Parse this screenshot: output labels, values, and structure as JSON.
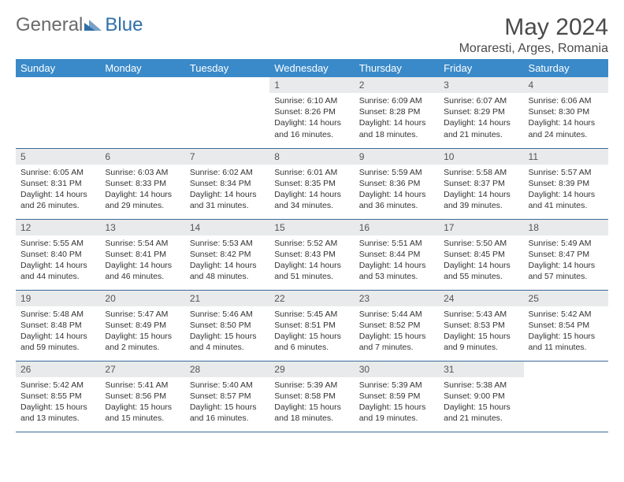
{
  "brand": {
    "part1": "General",
    "part2": "Blue"
  },
  "title": "May 2024",
  "location": "Moraresti, Arges, Romania",
  "day_headers": [
    "Sunday",
    "Monday",
    "Tuesday",
    "Wednesday",
    "Thursday",
    "Friday",
    "Saturday"
  ],
  "colors": {
    "header_bg": "#3a8ac9",
    "header_fg": "#ffffff",
    "daynum_bg": "#e9eaeb",
    "row_border": "#3a6a9a",
    "logo_gray": "#6a6a6a",
    "logo_blue": "#2f6fa8"
  },
  "weeks": [
    [
      {
        "n": "",
        "lines": []
      },
      {
        "n": "",
        "lines": []
      },
      {
        "n": "",
        "lines": []
      },
      {
        "n": "1",
        "lines": [
          "Sunrise: 6:10 AM",
          "Sunset: 8:26 PM",
          "Daylight: 14 hours",
          "and 16 minutes."
        ]
      },
      {
        "n": "2",
        "lines": [
          "Sunrise: 6:09 AM",
          "Sunset: 8:28 PM",
          "Daylight: 14 hours",
          "and 18 minutes."
        ]
      },
      {
        "n": "3",
        "lines": [
          "Sunrise: 6:07 AM",
          "Sunset: 8:29 PM",
          "Daylight: 14 hours",
          "and 21 minutes."
        ]
      },
      {
        "n": "4",
        "lines": [
          "Sunrise: 6:06 AM",
          "Sunset: 8:30 PM",
          "Daylight: 14 hours",
          "and 24 minutes."
        ]
      }
    ],
    [
      {
        "n": "5",
        "lines": [
          "Sunrise: 6:05 AM",
          "Sunset: 8:31 PM",
          "Daylight: 14 hours",
          "and 26 minutes."
        ]
      },
      {
        "n": "6",
        "lines": [
          "Sunrise: 6:03 AM",
          "Sunset: 8:33 PM",
          "Daylight: 14 hours",
          "and 29 minutes."
        ]
      },
      {
        "n": "7",
        "lines": [
          "Sunrise: 6:02 AM",
          "Sunset: 8:34 PM",
          "Daylight: 14 hours",
          "and 31 minutes."
        ]
      },
      {
        "n": "8",
        "lines": [
          "Sunrise: 6:01 AM",
          "Sunset: 8:35 PM",
          "Daylight: 14 hours",
          "and 34 minutes."
        ]
      },
      {
        "n": "9",
        "lines": [
          "Sunrise: 5:59 AM",
          "Sunset: 8:36 PM",
          "Daylight: 14 hours",
          "and 36 minutes."
        ]
      },
      {
        "n": "10",
        "lines": [
          "Sunrise: 5:58 AM",
          "Sunset: 8:37 PM",
          "Daylight: 14 hours",
          "and 39 minutes."
        ]
      },
      {
        "n": "11",
        "lines": [
          "Sunrise: 5:57 AM",
          "Sunset: 8:39 PM",
          "Daylight: 14 hours",
          "and 41 minutes."
        ]
      }
    ],
    [
      {
        "n": "12",
        "lines": [
          "Sunrise: 5:55 AM",
          "Sunset: 8:40 PM",
          "Daylight: 14 hours",
          "and 44 minutes."
        ]
      },
      {
        "n": "13",
        "lines": [
          "Sunrise: 5:54 AM",
          "Sunset: 8:41 PM",
          "Daylight: 14 hours",
          "and 46 minutes."
        ]
      },
      {
        "n": "14",
        "lines": [
          "Sunrise: 5:53 AM",
          "Sunset: 8:42 PM",
          "Daylight: 14 hours",
          "and 48 minutes."
        ]
      },
      {
        "n": "15",
        "lines": [
          "Sunrise: 5:52 AM",
          "Sunset: 8:43 PM",
          "Daylight: 14 hours",
          "and 51 minutes."
        ]
      },
      {
        "n": "16",
        "lines": [
          "Sunrise: 5:51 AM",
          "Sunset: 8:44 PM",
          "Daylight: 14 hours",
          "and 53 minutes."
        ]
      },
      {
        "n": "17",
        "lines": [
          "Sunrise: 5:50 AM",
          "Sunset: 8:45 PM",
          "Daylight: 14 hours",
          "and 55 minutes."
        ]
      },
      {
        "n": "18",
        "lines": [
          "Sunrise: 5:49 AM",
          "Sunset: 8:47 PM",
          "Daylight: 14 hours",
          "and 57 minutes."
        ]
      }
    ],
    [
      {
        "n": "19",
        "lines": [
          "Sunrise: 5:48 AM",
          "Sunset: 8:48 PM",
          "Daylight: 14 hours",
          "and 59 minutes."
        ]
      },
      {
        "n": "20",
        "lines": [
          "Sunrise: 5:47 AM",
          "Sunset: 8:49 PM",
          "Daylight: 15 hours",
          "and 2 minutes."
        ]
      },
      {
        "n": "21",
        "lines": [
          "Sunrise: 5:46 AM",
          "Sunset: 8:50 PM",
          "Daylight: 15 hours",
          "and 4 minutes."
        ]
      },
      {
        "n": "22",
        "lines": [
          "Sunrise: 5:45 AM",
          "Sunset: 8:51 PM",
          "Daylight: 15 hours",
          "and 6 minutes."
        ]
      },
      {
        "n": "23",
        "lines": [
          "Sunrise: 5:44 AM",
          "Sunset: 8:52 PM",
          "Daylight: 15 hours",
          "and 7 minutes."
        ]
      },
      {
        "n": "24",
        "lines": [
          "Sunrise: 5:43 AM",
          "Sunset: 8:53 PM",
          "Daylight: 15 hours",
          "and 9 minutes."
        ]
      },
      {
        "n": "25",
        "lines": [
          "Sunrise: 5:42 AM",
          "Sunset: 8:54 PM",
          "Daylight: 15 hours",
          "and 11 minutes."
        ]
      }
    ],
    [
      {
        "n": "26",
        "lines": [
          "Sunrise: 5:42 AM",
          "Sunset: 8:55 PM",
          "Daylight: 15 hours",
          "and 13 minutes."
        ]
      },
      {
        "n": "27",
        "lines": [
          "Sunrise: 5:41 AM",
          "Sunset: 8:56 PM",
          "Daylight: 15 hours",
          "and 15 minutes."
        ]
      },
      {
        "n": "28",
        "lines": [
          "Sunrise: 5:40 AM",
          "Sunset: 8:57 PM",
          "Daylight: 15 hours",
          "and 16 minutes."
        ]
      },
      {
        "n": "29",
        "lines": [
          "Sunrise: 5:39 AM",
          "Sunset: 8:58 PM",
          "Daylight: 15 hours",
          "and 18 minutes."
        ]
      },
      {
        "n": "30",
        "lines": [
          "Sunrise: 5:39 AM",
          "Sunset: 8:59 PM",
          "Daylight: 15 hours",
          "and 19 minutes."
        ]
      },
      {
        "n": "31",
        "lines": [
          "Sunrise: 5:38 AM",
          "Sunset: 9:00 PM",
          "Daylight: 15 hours",
          "and 21 minutes."
        ]
      },
      {
        "n": "",
        "lines": []
      }
    ]
  ]
}
